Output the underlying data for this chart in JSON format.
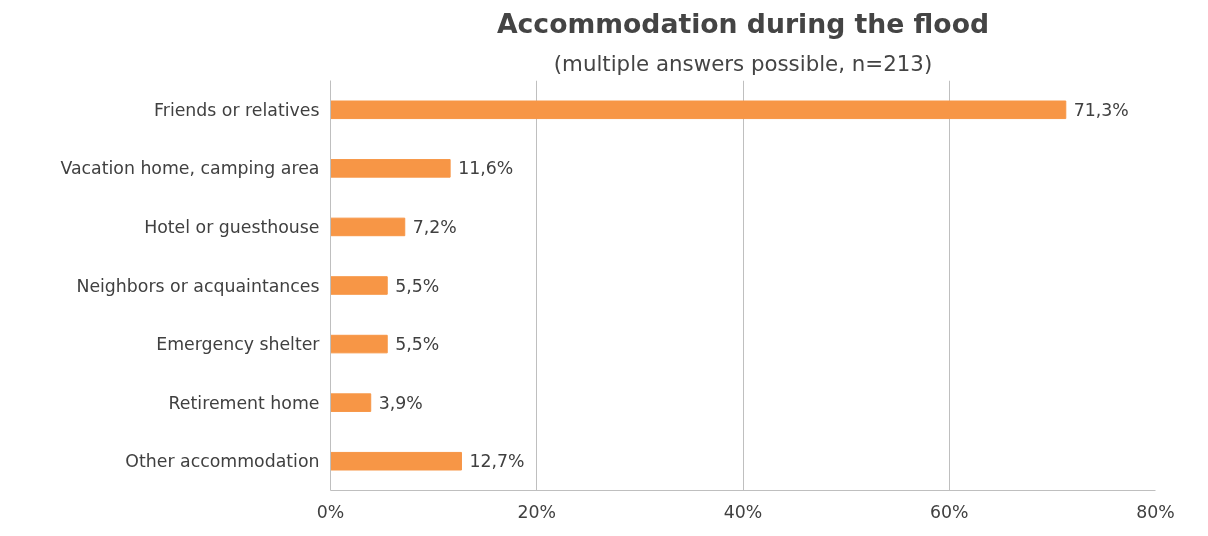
{
  "chart_data": {
    "type": "bar",
    "orientation": "horizontal",
    "title": "Accommodation during the flood",
    "subtitle": "(multiple answers possible, n=213)",
    "categories": [
      "Friends or relatives",
      "Vacation home, camping area",
      "Hotel or guesthouse",
      "Neighbors or acquaintances",
      "Emergency shelter",
      "Retirement home",
      "Other accommodation"
    ],
    "values": [
      71.3,
      11.6,
      7.2,
      5.5,
      5.5,
      3.9,
      12.7
    ],
    "value_labels": [
      "71,3%",
      "11,6%",
      "7,2%",
      "5,5%",
      "5,5%",
      "3,9%",
      "12,7%"
    ],
    "color": "#f79646",
    "xlim": [
      0,
      80
    ],
    "xticks": [
      {
        "value": 0,
        "label": "0%"
      },
      {
        "value": 20,
        "label": "20%"
      },
      {
        "value": 40,
        "label": "40%"
      },
      {
        "value": 60,
        "label": "60%"
      },
      {
        "value": 80,
        "label": "80%"
      }
    ],
    "grid": "x"
  }
}
